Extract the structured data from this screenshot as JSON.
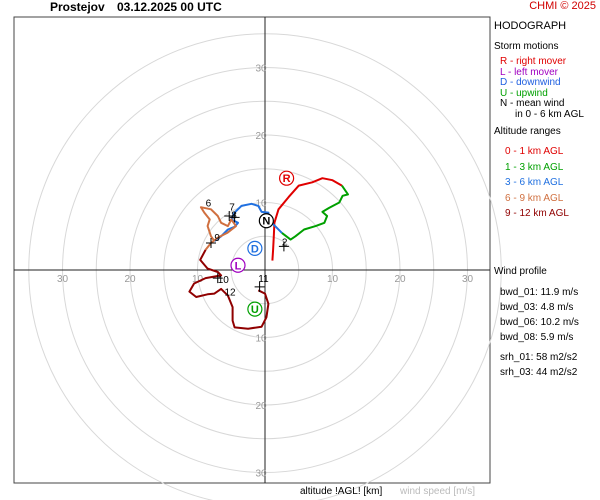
{
  "header": {
    "station": "Prostejov",
    "datetime": "03.12.2025 00 UTC",
    "credit": "CHMI © 2025"
  },
  "panel": {
    "title": "HODOGRAPH",
    "storm_title": "Storm motions",
    "storm_items": [
      {
        "text": "R - right mover",
        "color": "#e00000"
      },
      {
        "text": "L - left mover",
        "color": "#a000c0"
      },
      {
        "text": "D - downwind",
        "color": "#2060e0"
      },
      {
        "text": "U - upwind",
        "color": "#00a000"
      },
      {
        "text": "N - mean wind",
        "color": "#000000"
      },
      {
        "text": "in 0 - 6 km AGL",
        "color": "#000000"
      }
    ],
    "altitude_title": "Altitude ranges",
    "altitude_items": [
      {
        "text": "0 - 1 km AGL",
        "color": "#e00000"
      },
      {
        "text": "1 - 3 km AGL",
        "color": "#00a000"
      },
      {
        "text": "3 - 6 km AGL",
        "color": "#2070e0"
      },
      {
        "text": "6 - 9 km AGL",
        "color": "#d07040"
      },
      {
        "text": "9 - 12 km AGL",
        "color": "#900000"
      }
    ],
    "wind_profile_title": "Wind profile",
    "wind_profile": [
      "bwd_01: 11.9 m/s",
      "bwd_03: 4.8 m/s",
      "bwd_06: 10.2 m/s",
      "bwd_08: 5.9 m/s",
      "srh_01: 58 m2/s2",
      "srh_03: 44 m2/s2"
    ]
  },
  "footer": {
    "altitude_label": "altitude !AGL! [km]",
    "speed_label": "wind speed [m/s]"
  },
  "chart_data": {
    "type": "line",
    "rings": [
      5,
      10,
      15,
      20,
      25,
      30,
      35
    ],
    "ring_labels": [
      10,
      20,
      30
    ],
    "axis_range": [
      -35,
      35
    ],
    "series": [
      {
        "color": "#e00000",
        "points": [
          [
            1.1,
            1.4
          ],
          [
            1.2,
            3.0
          ],
          [
            1.3,
            5.0
          ],
          [
            1.4,
            7.0
          ],
          [
            2.0,
            9.0
          ],
          [
            3.5,
            10.8
          ],
          [
            5.0,
            12.5
          ],
          [
            7.0,
            13.0
          ],
          [
            8.5,
            13.6
          ],
          [
            10,
            13.3
          ],
          [
            11.4,
            12.5
          ]
        ]
      },
      {
        "color": "#00a000",
        "points": [
          [
            11.4,
            12.5
          ],
          [
            12.3,
            11.2
          ],
          [
            11.5,
            11.0
          ],
          [
            11.0,
            10.0
          ],
          [
            9.5,
            9.2
          ],
          [
            8.5,
            8.6
          ],
          [
            9.2,
            8.0
          ],
          [
            8.8,
            7.0
          ],
          [
            7.5,
            6.5
          ],
          [
            5.8,
            6.0
          ],
          [
            4.5,
            5.0
          ],
          [
            3.8,
            4.5
          ],
          [
            2.5,
            5.5
          ]
        ]
      },
      {
        "color": "#2070e0",
        "points": [
          [
            2.5,
            5.5
          ],
          [
            1.5,
            6.5
          ],
          [
            0.5,
            7.5
          ],
          [
            0.5,
            8.5
          ],
          [
            -0.5,
            8.6
          ],
          [
            -1.0,
            9.5
          ],
          [
            -2.0,
            9.8
          ],
          [
            -3.5,
            9.5
          ],
          [
            -4.5,
            8.5
          ],
          [
            -5.0,
            7.5
          ],
          [
            -4.0,
            7.0
          ],
          [
            -4.5,
            6.4
          ],
          [
            -5.5,
            6.0
          ],
          [
            -6.5,
            5.0
          ],
          [
            -7.5,
            4.3
          ]
        ]
      },
      {
        "color": "#d07040",
        "points": [
          [
            -7.5,
            4.3
          ],
          [
            -8.0,
            5.0
          ],
          [
            -8.5,
            6.5
          ],
          [
            -8.2,
            7.5
          ],
          [
            -9.0,
            8.5
          ],
          [
            -9.5,
            9.3
          ],
          [
            -8.0,
            9.0
          ],
          [
            -7.0,
            8.0
          ],
          [
            -6.5,
            7.0
          ],
          [
            -5.5,
            6.5
          ],
          [
            -5.0,
            7.5
          ],
          [
            -4.3,
            6.5
          ],
          [
            -5.6,
            5.5
          ],
          [
            -7.0,
            4.8
          ],
          [
            -8.0,
            4.0
          ],
          [
            -8.8,
            3.0
          ]
        ]
      },
      {
        "color": "#900000",
        "points": [
          [
            -8.8,
            3.0
          ],
          [
            -9.6,
            1.5
          ],
          [
            -8.5,
            0.2
          ],
          [
            -7.0,
            -0.3
          ],
          [
            -6.5,
            -0.8
          ],
          [
            -8.8,
            -1.2
          ],
          [
            -10.5,
            -2.0
          ],
          [
            -11.2,
            -3.2
          ],
          [
            -10.2,
            -4.0
          ],
          [
            -8.5,
            -3.6
          ],
          [
            -7.5,
            -3.5
          ],
          [
            -6.5,
            -2.8
          ],
          [
            -5.5,
            -3.8
          ],
          [
            -4.8,
            -5.5
          ],
          [
            -4.8,
            -7.5
          ],
          [
            -4.5,
            -8.5
          ],
          [
            -2.5,
            -8.7
          ],
          [
            -0.5,
            -8.4
          ],
          [
            0.2,
            -7.0
          ],
          [
            0.5,
            -5.0
          ],
          [
            0.0,
            -3.5
          ],
          [
            -1.0,
            -3.0
          ]
        ]
      }
    ],
    "height_marks": [
      {
        "label": "2",
        "x": 2.5,
        "y": 3.6
      },
      {
        "label": "6",
        "x": -8.8,
        "y": 9.4
      },
      {
        "label": "7",
        "x": -5.3,
        "y": 8.8
      },
      {
        "label": "8",
        "x": -5.0,
        "y": 7.6
      },
      {
        "label": "9",
        "x": -7.5,
        "y": 4.3
      },
      {
        "label": "10",
        "x": -7.0,
        "y": -1.9
      },
      {
        "label": "11",
        "x": -1.0,
        "y": -1.8
      },
      {
        "label": "12",
        "x": -6.0,
        "y": -3.8
      }
    ],
    "cross_marks": [
      [
        2.8,
        3.5
      ],
      [
        -8.0,
        4.0
      ],
      [
        -7.0,
        -1.2
      ],
      [
        -0.8,
        -2.5
      ],
      [
        -5.3,
        8.0
      ],
      [
        -4.5,
        7.8
      ]
    ],
    "storm_points": [
      {
        "label": "R",
        "x": 3.2,
        "y": 13.6,
        "color": "#e00000"
      },
      {
        "label": "L",
        "x": -4.0,
        "y": 0.7,
        "color": "#a000c0"
      },
      {
        "label": "D",
        "x": -1.5,
        "y": 3.2,
        "color": "#2070e0"
      },
      {
        "label": "U",
        "x": -1.5,
        "y": -5.8,
        "color": "#00a000"
      },
      {
        "label": "N",
        "x": 0.2,
        "y": 7.3,
        "color": "#000000"
      }
    ]
  }
}
